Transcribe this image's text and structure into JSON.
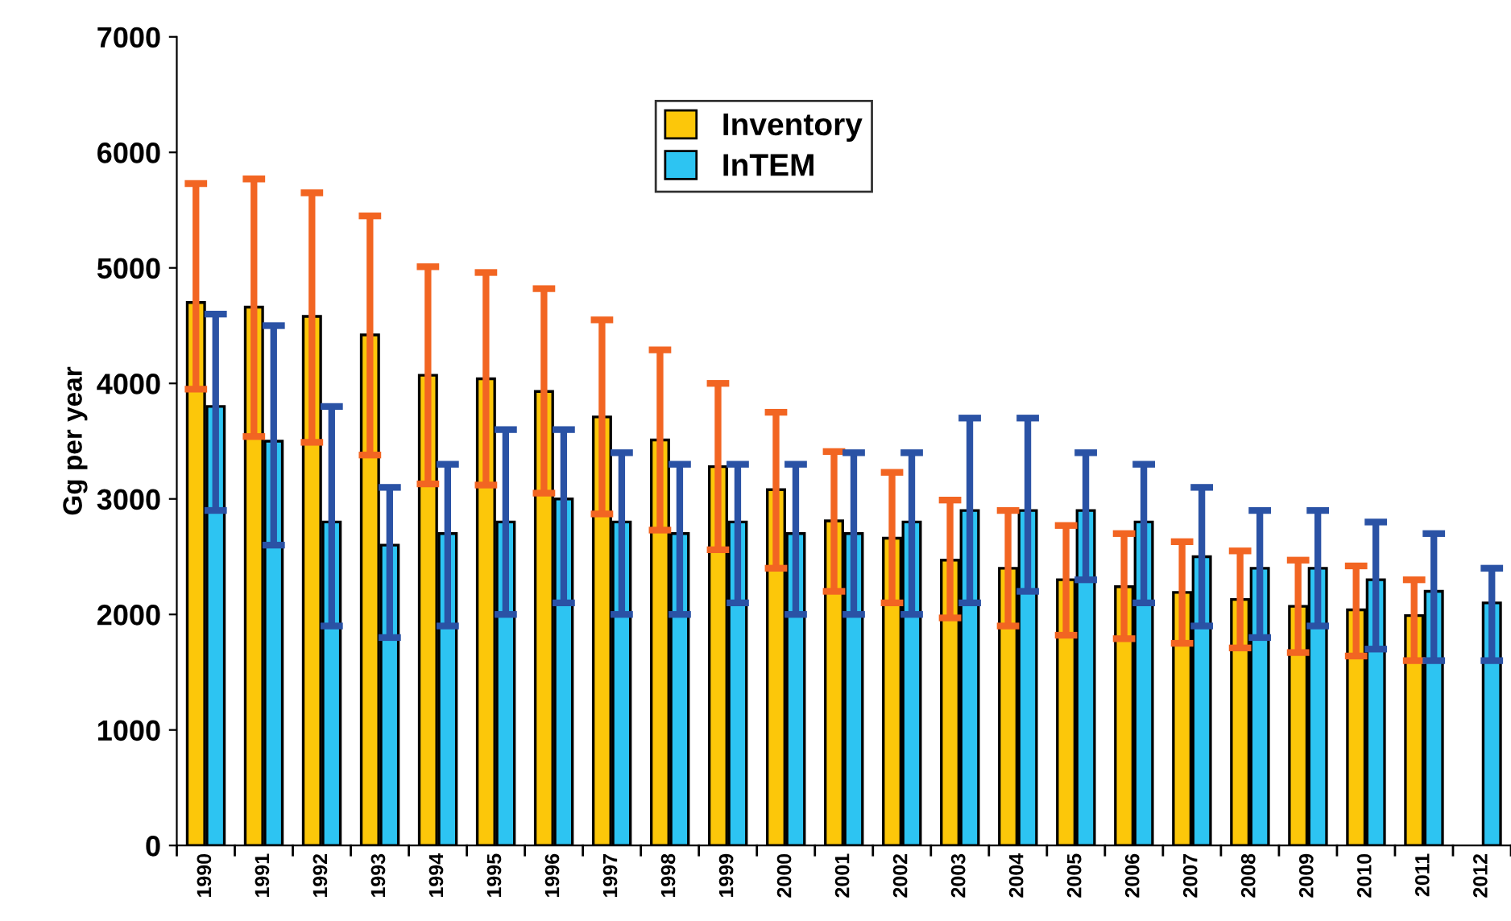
{
  "chart_data": {
    "type": "bar",
    "ylabel": "Gg per year",
    "categories": [
      "1990",
      "1991",
      "1992",
      "1993",
      "1994",
      "1995",
      "1996",
      "1997",
      "1998",
      "1999",
      "2000",
      "2001",
      "2002",
      "2003",
      "2004",
      "2005",
      "2006",
      "2007",
      "2008",
      "2009",
      "2010",
      "2011",
      "2012"
    ],
    "series": [
      {
        "name": "Inventory",
        "color": "#fcc70a",
        "values": [
          4700,
          4660,
          4580,
          4420,
          4070,
          4040,
          3930,
          3710,
          3510,
          3280,
          3080,
          2810,
          2660,
          2470,
          2400,
          2300,
          2240,
          2190,
          2130,
          2070,
          2040,
          1990,
          null
        ],
        "errors": [
          [
            3950,
            5730
          ],
          [
            3540,
            5770
          ],
          [
            3490,
            5650
          ],
          [
            3380,
            5450
          ],
          [
            3130,
            5010
          ],
          [
            3120,
            4960
          ],
          [
            3050,
            4820
          ],
          [
            2870,
            4550
          ],
          [
            2730,
            4290
          ],
          [
            2560,
            4000
          ],
          [
            2400,
            3750
          ],
          [
            2200,
            3410
          ],
          [
            2100,
            3230
          ],
          [
            1970,
            2990
          ],
          [
            1900,
            2900
          ],
          [
            1820,
            2770
          ],
          [
            1790,
            2700
          ],
          [
            1750,
            2630
          ],
          [
            1710,
            2550
          ],
          [
            1670,
            2470
          ],
          [
            1640,
            2420
          ],
          [
            1600,
            2300
          ],
          null
        ]
      },
      {
        "name": "InTEM",
        "color": "#2dc4f2",
        "values": [
          3800,
          3500,
          2800,
          2600,
          2700,
          2800,
          3000,
          2800,
          2700,
          2800,
          2700,
          2700,
          2800,
          2900,
          2900,
          2900,
          2800,
          2500,
          2400,
          2400,
          2300,
          2200,
          2100
        ],
        "errors": [
          [
            2900,
            4600
          ],
          [
            2600,
            4500
          ],
          [
            1900,
            3800
          ],
          [
            1800,
            3100
          ],
          [
            1900,
            3300
          ],
          [
            2000,
            3600
          ],
          [
            2100,
            3600
          ],
          [
            2000,
            3400
          ],
          [
            2000,
            3300
          ],
          [
            2100,
            3300
          ],
          [
            2000,
            3300
          ],
          [
            2000,
            3400
          ],
          [
            2000,
            3400
          ],
          [
            2100,
            3700
          ],
          [
            2200,
            3700
          ],
          [
            2300,
            3400
          ],
          [
            2100,
            3300
          ],
          [
            1900,
            3100
          ],
          [
            1800,
            2900
          ],
          [
            1900,
            2900
          ],
          [
            1700,
            2800
          ],
          [
            1600,
            2700
          ],
          [
            1600,
            2400
          ]
        ]
      }
    ],
    "ylim": [
      0,
      7000
    ],
    "yticks": [
      0,
      1000,
      2000,
      3000,
      4000,
      5000,
      6000,
      7000
    ],
    "grid": false,
    "legend": "top"
  }
}
